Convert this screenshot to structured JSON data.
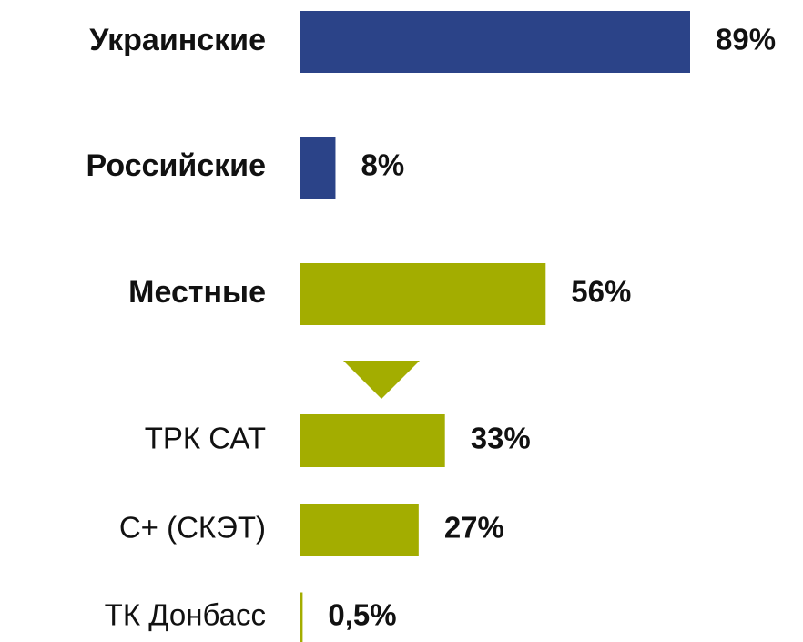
{
  "chart_data": {
    "type": "bar",
    "orientation": "horizontal",
    "categories": [
      "Украинские",
      "Российские",
      "Местные",
      "ТРК САТ",
      "С+ (СКЭТ)",
      "ТК Донбасс"
    ],
    "values": [
      89,
      8,
      56,
      33,
      27,
      0.5
    ],
    "value_labels": [
      "89%",
      "8%",
      "56%",
      "33%",
      "27%",
      "0,5%"
    ],
    "colors": [
      "#2b4388",
      "#2b4388",
      "#a3ad00",
      "#a3ad00",
      "#a3ad00",
      "#a3ad00"
    ]
  }
}
